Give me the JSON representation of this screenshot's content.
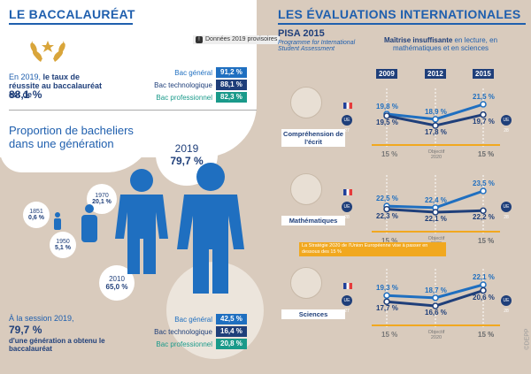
{
  "left": {
    "title": "LE BACCALAURÉAT",
    "note": "Données 2019 provisoires",
    "success_intro": "En 2019, ",
    "success_bold": "le taux de réussite au baccalauréat est de",
    "success_value": "88,1 %",
    "bars_top": [
      {
        "label": "Bac général",
        "value": "91,2 %",
        "color": "#1f6fc0"
      },
      {
        "label": "Bac technologique",
        "value": "88,1 %",
        "color": "#1f3f7a"
      },
      {
        "label": "Bac professionnel",
        "value": "82,3 %",
        "color": "#1a9a8a"
      }
    ],
    "proportion_title": "Proportion de bacheliers dans une génération",
    "people": [
      {
        "year": "1851",
        "value": "0,6 %"
      },
      {
        "year": "1950",
        "value": "5,1 %"
      },
      {
        "year": "1970",
        "value": "20,1 %"
      },
      {
        "year": "2010",
        "value": "65,0 %"
      },
      {
        "year": "2019",
        "value": "79,7 %"
      }
    ],
    "session_intro": "À la session 2019,",
    "session_value": "79,7 %",
    "session_text": "d'une génération a obtenu le baccalauréat",
    "bars_bottom": [
      {
        "label": "Bac général",
        "value": "42,5 %",
        "color": "#1f6fc0"
      },
      {
        "label": "Bac technologique",
        "value": "16,4 %",
        "color": "#1f3f7a"
      },
      {
        "label": "Bac professionnel",
        "value": "20,8 %",
        "color": "#1a9a8a"
      }
    ]
  },
  "right": {
    "title": "LES ÉVALUATIONS INTERNATIONALES",
    "pisa": "PISA 2015",
    "pisa_sub": "Programme for International Student Assessment",
    "legend_bold": "Maîtrise insuffisante",
    "legend_rest": " en lecture, en mathématiques et en sciences",
    "years": [
      "2009",
      "2012",
      "2015"
    ],
    "target_label": "Objectif 2020",
    "target_value": "15 %",
    "ue_label": "UE 28",
    "ue_label_alt": "UE 27",
    "strategy_note": "La Stratégie 2020 de l'Union Européenne vise à passer en dessous des 15 %",
    "sections": [
      {
        "name": "Compréhension de l'écrit",
        "france": [
          "19,8 %",
          "18,9 %",
          "21,5 %"
        ],
        "ue": [
          "19,5 %",
          "17,8 %",
          "19,7 %"
        ]
      },
      {
        "name": "Mathématiques",
        "france": [
          "22,5 %",
          "22,4 %",
          "23,5 %"
        ],
        "ue": [
          "22,3 %",
          "22,1 %",
          "22,2 %"
        ]
      },
      {
        "name": "Sciences",
        "france": [
          "19,3 %",
          "18,7 %",
          "22,1 %"
        ],
        "ue": [
          "17,7 %",
          "16,6 %",
          "20,6 %"
        ]
      }
    ],
    "credit": "©DEPP"
  }
}
